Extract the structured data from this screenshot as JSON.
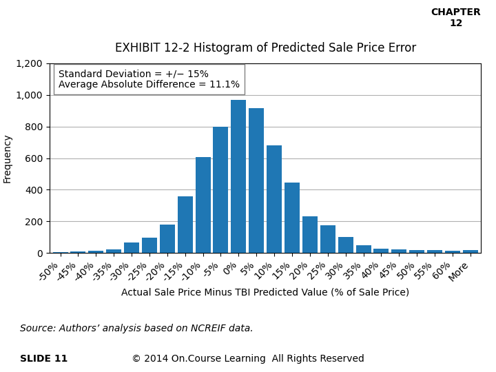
{
  "chart_data": {
    "type": "bar",
    "title": "EXHIBIT 12-2 Histogram of Predicted Sale Price Error",
    "xlabel": "Actual Sale Price Minus TBI Predicted Value (% of Sale Price)",
    "ylabel": "Frequency",
    "categories": [
      "-50%",
      "-45%",
      "-40%",
      "-35%",
      "-30%",
      "-25%",
      "-20%",
      "-15%",
      "-10%",
      "-5%",
      "0%",
      "5%",
      "10%",
      "15%",
      "20%",
      "25%",
      "30%",
      "35%",
      "40%",
      "45%",
      "50%",
      "55%",
      "60%",
      "More"
    ],
    "values": [
      5,
      8,
      12,
      22,
      65,
      95,
      180,
      360,
      605,
      800,
      970,
      915,
      680,
      445,
      230,
      175,
      100,
      48,
      25,
      22,
      20,
      18,
      12,
      18
    ],
    "ylim": [
      0,
      1200
    ],
    "yticks": [
      0,
      200,
      400,
      600,
      800,
      {
        "value": 1000,
        "label": "1,000"
      },
      {
        "value": 1200,
        "label": "1,200"
      }
    ],
    "grid": true,
    "annotations": [
      "Standard Deviation = +/− 15%",
      "Average Absolute Difference = 11.1%"
    ],
    "badge": [
      "CHAPTER",
      "12"
    ],
    "source": "Source: Authors’ analysis based on NCREIF data.",
    "footer": [
      "SLIDE 11",
      "© 2014 On.Course Learning  All Rights Reserved"
    ]
  }
}
